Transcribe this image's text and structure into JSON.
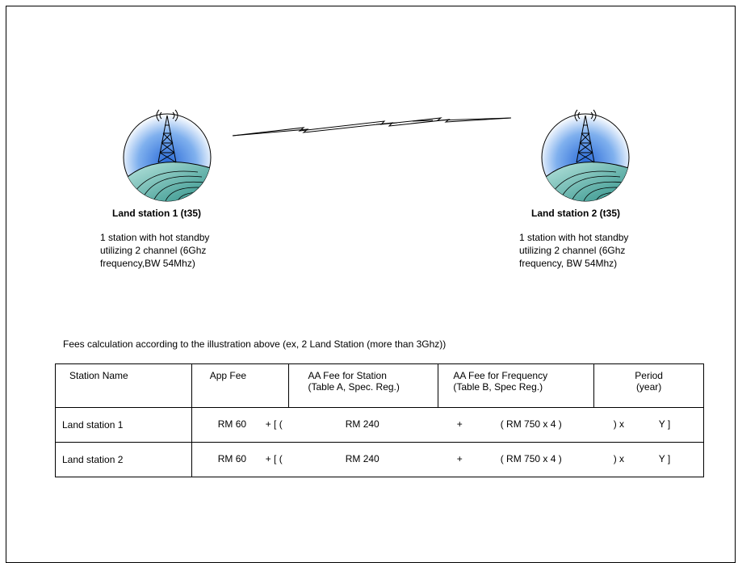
{
  "stations": [
    {
      "title": "Land station 1 (t35)",
      "desc_lines": [
        "1 station with hot standby",
        "utilizing 2 channel (6Ghz",
        "frequency,BW 54Mhz)"
      ]
    },
    {
      "title": "Land station 2 (t35)",
      "desc_lines": [
        "1 station with hot standby",
        "utilizing 2 channel (6Ghz",
        "frequency, BW 54Mhz)"
      ]
    }
  ],
  "calc_heading": "Fees calculation according to the illustration above (ex, 2 Land Station (more than 3Ghz))",
  "table": {
    "headers": {
      "station_name": "Station Name",
      "app_fee": "App Fee",
      "aa_station_line1": "AA Fee for Station",
      "aa_station_line2": "(Table A, Spec. Reg.)",
      "aa_freq_line1": "AA Fee for Frequency",
      "aa_freq_line2": "(Table B, Spec Reg.)",
      "period_line1": "Period",
      "period_line2": "(year)"
    },
    "rows": [
      {
        "name": "Land station 1",
        "app_fee": "RM 60",
        "op1": "+ [  (",
        "station_fee": "RM 240",
        "op2": "+",
        "freq_fee": "( RM 750 x 4 )",
        "op3": ") x",
        "period": "Y  ]"
      },
      {
        "name": "Land station 2",
        "app_fee": "RM 60",
        "op1": "+ [  (",
        "station_fee": "RM 240",
        "op2": "+",
        "freq_fee": "( RM 750 x 4 )",
        "op3": ") x",
        "period": "Y  ]"
      }
    ]
  },
  "colors": {
    "sky_center": "#2a6ad8",
    "sky_edge": "#ffffff",
    "hill_fill": "#3aa59a",
    "hill_light": "#bfe8e2"
  },
  "icons": [
    "radio-tower-icon",
    "microwave-link-icon"
  ]
}
